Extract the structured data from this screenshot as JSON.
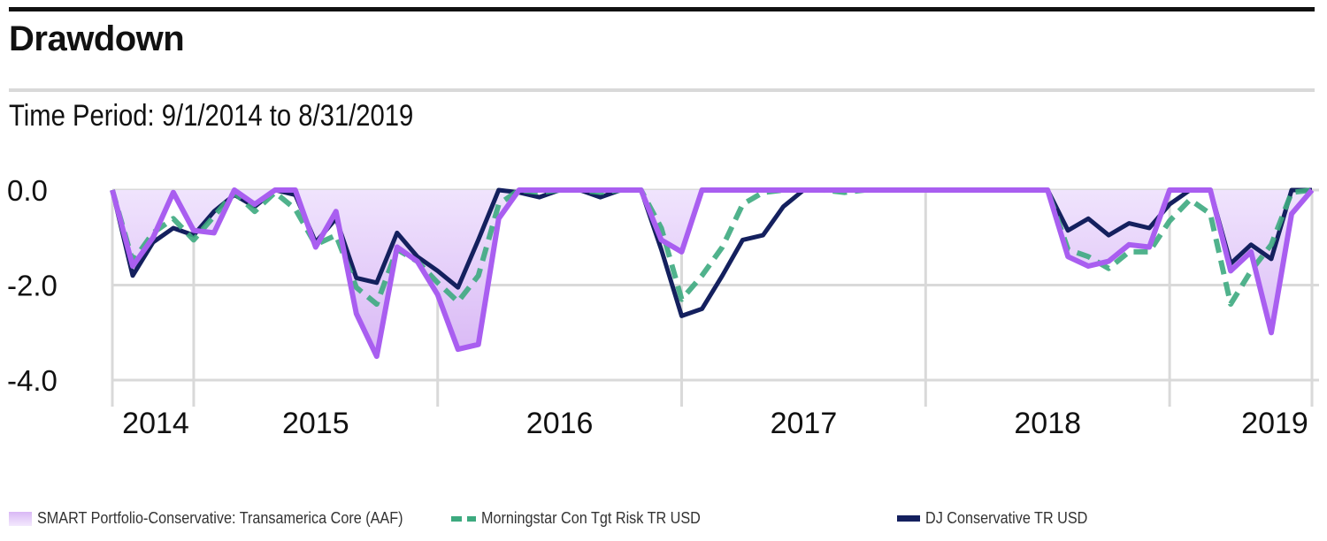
{
  "header": {
    "title": "Drawdown",
    "subtitle": "Time Period: 9/1/2014 to 8/31/2019"
  },
  "colors": {
    "fund_fill": "#d9b8f5",
    "fund_line": "#a95ef0",
    "benchmark_line": "#3daa7f",
    "dj_line": "#14205e",
    "grid": "#d9d9d9"
  },
  "chart_data": {
    "type": "area",
    "title": "Drawdown",
    "subtitle": "Time Period: 9/1/2014 to 8/31/2019",
    "x_start": "2014-09",
    "x_end": "2019-08",
    "frequency": "monthly",
    "x_ticks": [
      "2014",
      "2015",
      "2016",
      "2017",
      "2018",
      "2019"
    ],
    "y_ticks": [
      "0.0",
      "-2.0",
      "-4.0"
    ],
    "ylim": [
      -4.0,
      0.0
    ],
    "grid": true,
    "legend_position": "bottom",
    "series": [
      {
        "name": "SMART Portfolio-Conservative: Transamerica Core (AAF)",
        "style": "filled-area",
        "values": [
          0.0,
          -1.6,
          -1.0,
          -0.05,
          -0.85,
          -0.9,
          0.0,
          -0.3,
          0.0,
          0.0,
          -1.2,
          -0.45,
          -2.6,
          -3.5,
          -1.2,
          -1.5,
          -2.2,
          -3.35,
          -3.25,
          -0.6,
          0.0,
          0.0,
          0.0,
          0.0,
          0.0,
          0.0,
          0.0,
          -1.05,
          -1.3,
          0.0,
          0.0,
          0.0,
          0.0,
          0.0,
          0.0,
          0.0,
          0.0,
          0.0,
          0.0,
          0.0,
          0.0,
          0.0,
          0.0,
          0.0,
          0.0,
          0.0,
          0.0,
          -1.4,
          -1.6,
          -1.5,
          -1.15,
          -1.2,
          0.0,
          0.0,
          0.0,
          -1.7,
          -1.3,
          -3.0,
          -0.5,
          0.0
        ]
      },
      {
        "name": "Morningstar Con Tgt Risk TR USD",
        "style": "dashed",
        "values": [
          0.0,
          -1.5,
          -0.9,
          -0.6,
          -1.05,
          -0.55,
          -0.05,
          -0.45,
          -0.05,
          -0.4,
          -1.15,
          -0.95,
          -2.05,
          -2.4,
          -1.25,
          -1.5,
          -1.95,
          -2.35,
          -1.8,
          -0.3,
          0.0,
          -0.05,
          0.0,
          0.0,
          -0.05,
          0.0,
          0.0,
          -0.8,
          -2.3,
          -1.8,
          -1.2,
          -0.3,
          -0.05,
          0.0,
          0.0,
          0.0,
          -0.05,
          0.0,
          0.0,
          0.0,
          0.0,
          0.0,
          0.0,
          0.0,
          0.0,
          0.0,
          0.0,
          -1.25,
          -1.4,
          -1.65,
          -1.3,
          -1.3,
          -0.65,
          -0.2,
          -0.5,
          -2.4,
          -1.7,
          -1.15,
          -0.05,
          0.0
        ]
      },
      {
        "name": "DJ Conservative TR USD",
        "style": "solid",
        "values": [
          0.0,
          -1.8,
          -1.1,
          -0.8,
          -0.95,
          -0.45,
          -0.1,
          -0.35,
          0.0,
          -0.1,
          -1.1,
          -0.6,
          -1.85,
          -1.95,
          -0.9,
          -1.4,
          -1.7,
          -2.05,
          -1.05,
          0.0,
          -0.05,
          -0.15,
          0.0,
          0.0,
          -0.15,
          0.0,
          0.0,
          -1.25,
          -2.65,
          -2.5,
          -1.8,
          -1.05,
          -0.95,
          -0.35,
          0.0,
          0.0,
          0.0,
          0.0,
          0.0,
          0.0,
          0.0,
          0.0,
          0.0,
          0.0,
          0.0,
          0.0,
          0.0,
          -0.85,
          -0.6,
          -0.95,
          -0.7,
          -0.8,
          -0.3,
          0.0,
          0.0,
          -1.55,
          -1.15,
          -1.45,
          0.0,
          0.0
        ]
      }
    ]
  }
}
